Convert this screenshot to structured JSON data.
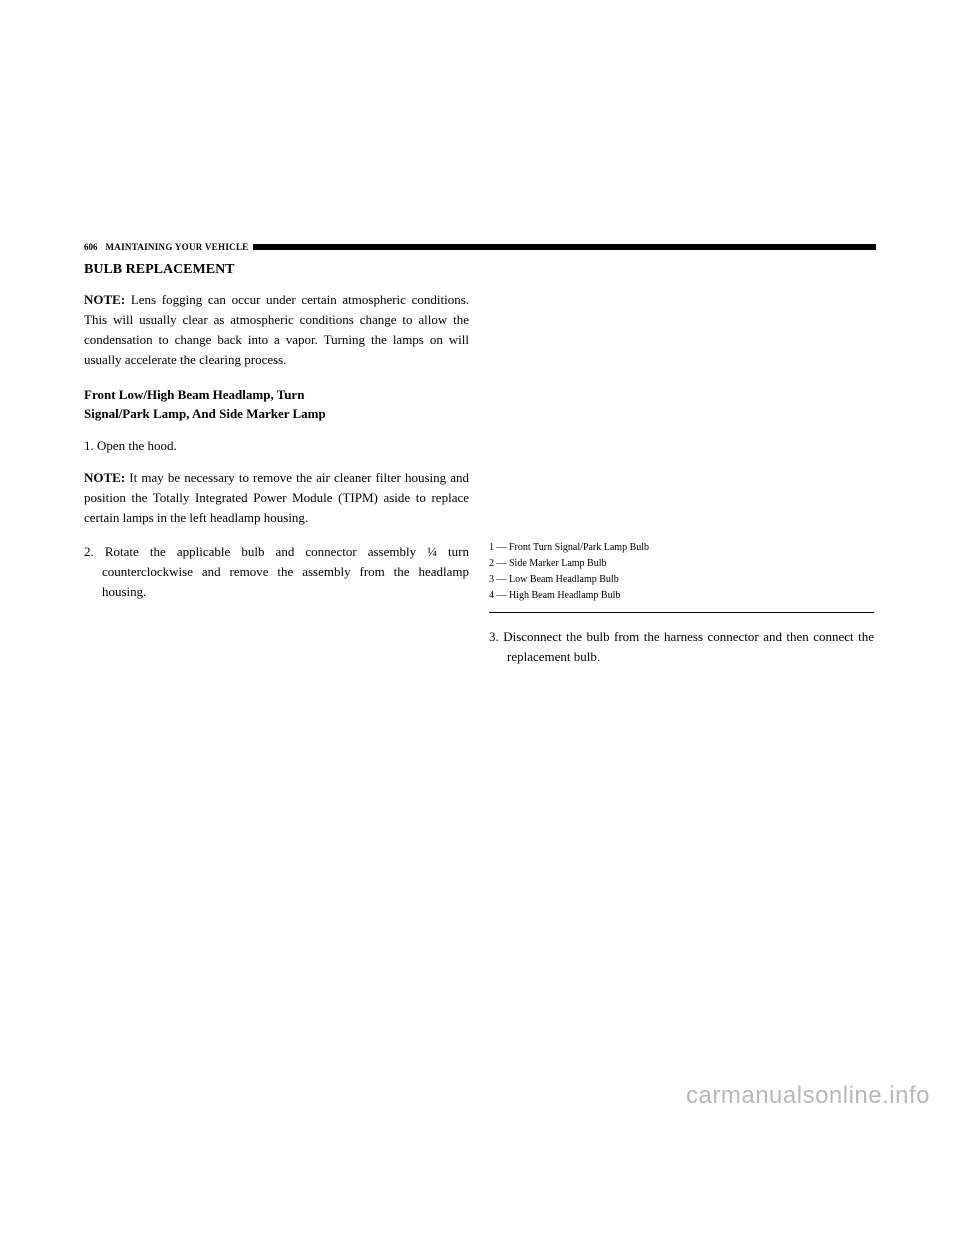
{
  "header": {
    "page_number": "606",
    "section": "MAINTAINING YOUR VEHICLE"
  },
  "section_title": "BULB REPLACEMENT",
  "note1": {
    "label": "NOTE:",
    "text": "Lens fogging can occur under certain atmospheric conditions. This will usually clear as atmospheric conditions change to allow the condensation to change back into a vapor. Turning the lamps on will usually accelerate the clearing process."
  },
  "subheading": {
    "line1": "Front Low/High Beam Headlamp, Turn",
    "line2": "Signal/Park Lamp, And Side Marker Lamp"
  },
  "step1": "1. Open the hood.",
  "note2": {
    "label": "NOTE:",
    "text": "It may be necessary to remove the air cleaner filter housing and position the Totally Integrated Power Module (TIPM) aside to replace certain lamps in the left headlamp housing."
  },
  "step2": "2. Rotate the applicable bulb and connector assembly ¼ turn counterclockwise and remove the assembly from the headlamp housing.",
  "legend": {
    "item1": "1 — Front Turn Signal/Park Lamp Bulb",
    "item2": "2 — Side Marker Lamp Bulb",
    "item3": "3 — Low Beam Headlamp Bulb",
    "item4": "4 — High Beam Headlamp Bulb"
  },
  "step3": "3. Disconnect the bulb from the harness connector and then connect the replacement bulb.",
  "watermark": "carmanualsonline.info"
}
